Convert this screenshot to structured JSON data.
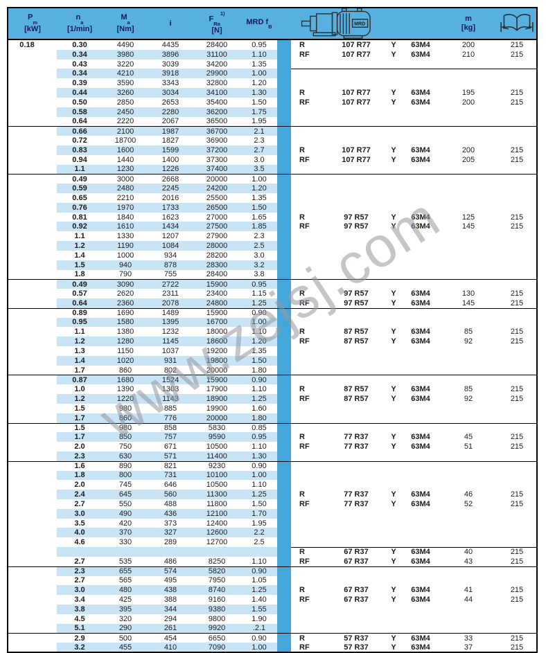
{
  "colors": {
    "header_blue": "#57b0e0",
    "stripe_blue": "#47a6d9",
    "row_shade": "#c9e5f5",
    "header_text_navy": "#10195f"
  },
  "watermark": "www.zejsj.com",
  "power": "0.18",
  "header": {
    "columns": [
      {
        "id": "pm",
        "main": "P",
        "sub": "m",
        "unit": "[kW]"
      },
      {
        "id": "na",
        "main": "n",
        "sub": "a",
        "unit": "[1/min]"
      },
      {
        "id": "ma",
        "main": "M",
        "sub": "a",
        "unit": "[Nm]"
      },
      {
        "id": "i",
        "main": "i",
        "unit": ""
      },
      {
        "id": "fra",
        "main": "F",
        "sub": "Ra",
        "sup": "1)",
        "unit": "[N]"
      },
      {
        "id": "mrd",
        "main": "MRD f",
        "sub": "B",
        "unit": ""
      }
    ],
    "motor_icon_label": "MRD",
    "m_main": "m",
    "m_unit": "[kg]"
  },
  "rows": [
    {
      "na": "0.30",
      "ma": "4490",
      "i": "4435",
      "fra": "28400",
      "mrd": "0.95",
      "r": [
        "R",
        "107 R77",
        "Y",
        "63M4",
        "200",
        "215"
      ]
    },
    {
      "na": "0.34",
      "ma": "3980",
      "i": "3896",
      "fra": "31100",
      "mrd": "1.10",
      "r": [
        "RF",
        "107 R77",
        "Y",
        "63M4",
        "210",
        "215"
      ]
    },
    {
      "na": "0.43",
      "ma": "3220",
      "i": "3039",
      "fra": "34200",
      "mrd": "1.35"
    },
    {
      "na": "0.34",
      "ma": "4210",
      "i": "3918",
      "fra": "29900",
      "mrd": "1.00",
      "rb": true
    },
    {
      "na": "0.39",
      "ma": "3590",
      "i": "3343",
      "fra": "32800",
      "mrd": "1.20"
    },
    {
      "na": "0.44",
      "ma": "3260",
      "i": "3034",
      "fra": "34100",
      "mrd": "1.30",
      "r": [
        "R",
        "107 R77",
        "Y",
        "63M4",
        "195",
        "215"
      ]
    },
    {
      "na": "0.50",
      "ma": "2850",
      "i": "2653",
      "fra": "35400",
      "mrd": "1.50",
      "r": [
        "RF",
        "107 R77",
        "Y",
        "63M4",
        "200",
        "215"
      ]
    },
    {
      "na": "0.58",
      "ma": "2450",
      "i": "2280",
      "fra": "36200",
      "mrd": "1.75"
    },
    {
      "na": "0.64",
      "ma": "2220",
      "i": "2067",
      "fra": "36500",
      "mrd": "1.95"
    },
    {
      "na": "0.66",
      "ma": "2100",
      "i": "1987",
      "fra": "36700",
      "mrd": "2.1",
      "sb": true
    },
    {
      "na": "0.72",
      "ma": "18700",
      "i": "1827",
      "fra": "36900",
      "mrd": "2.3"
    },
    {
      "na": "0.83",
      "ma": "1600",
      "i": "1599",
      "fra": "37200",
      "mrd": "2.7",
      "r": [
        "R",
        "107 R77",
        "Y",
        "63M4",
        "200",
        "215"
      ]
    },
    {
      "na": "0.94",
      "ma": "1440",
      "i": "1400",
      "fra": "37300",
      "mrd": "3.0",
      "r": [
        "RF",
        "107 R77",
        "Y",
        "63M4",
        "205",
        "215"
      ]
    },
    {
      "na": "1.1",
      "ma": "1230",
      "i": "1226",
      "fra": "37400",
      "mrd": "3.5"
    },
    {
      "na": "0.49",
      "ma": "3000",
      "i": "2668",
      "fra": "20000",
      "mrd": "1.00",
      "sb": true
    },
    {
      "na": "0.59",
      "ma": "2480",
      "i": "2245",
      "fra": "24200",
      "mrd": "1.20"
    },
    {
      "na": "0.65",
      "ma": "2210",
      "i": "2016",
      "fra": "25500",
      "mrd": "1.35"
    },
    {
      "na": "0.76",
      "ma": "1970",
      "i": "1733",
      "fra": "26500",
      "mrd": "1.50"
    },
    {
      "na": "0.81",
      "ma": "1840",
      "i": "1623",
      "fra": "27000",
      "mrd": "1.65",
      "r": [
        "R",
        "97 R57",
        "Y",
        "63M4",
        "125",
        "215"
      ]
    },
    {
      "na": "0.92",
      "ma": "1610",
      "i": "1434",
      "fra": "27500",
      "mrd": "1.85",
      "r": [
        "RF",
        "97 R57",
        "Y",
        "63M4",
        "145",
        "215"
      ]
    },
    {
      "na": "1.1",
      "ma": "1330",
      "i": "1207",
      "fra": "27900",
      "mrd": "2.3"
    },
    {
      "na": "1.2",
      "ma": "1190",
      "i": "1084",
      "fra": "28000",
      "mrd": "2.5"
    },
    {
      "na": "1.4",
      "ma": "1000",
      "i": "934",
      "fra": "28200",
      "mrd": "3.0"
    },
    {
      "na": "1.5",
      "ma": "940",
      "i": "878",
      "fra": "28300",
      "mrd": "3.2"
    },
    {
      "na": "1.8",
      "ma": "790",
      "i": "755",
      "fra": "28400",
      "mrd": "3.8"
    },
    {
      "na": "0.49",
      "ma": "3090",
      "i": "2722",
      "fra": "15900",
      "mrd": "0.95",
      "sb": true
    },
    {
      "na": "0.57",
      "ma": "2620",
      "i": "2311",
      "fra": "23400",
      "mrd": "1.15",
      "r": [
        "R",
        "97 R57",
        "Y",
        "63M4",
        "130",
        "215"
      ]
    },
    {
      "na": "0.64",
      "ma": "2360",
      "i": "2078",
      "fra": "24800",
      "mrd": "1.25",
      "r": [
        "RF",
        "97 R57",
        "Y",
        "63M4",
        "145",
        "215"
      ]
    },
    {
      "na": "0.89",
      "ma": "1690",
      "i": "1489",
      "fra": "15900",
      "mrd": "0.90",
      "sb": true
    },
    {
      "na": "0.95",
      "ma": "1580",
      "i": "1395",
      "fra": "16700",
      "mrd": "1.00"
    },
    {
      "na": "1.1",
      "ma": "1380",
      "i": "1232",
      "fra": "18000",
      "mrd": "1.10",
      "r": [
        "R",
        "87 R57",
        "Y",
        "63M4",
        "85",
        "215"
      ]
    },
    {
      "na": "1.2",
      "ma": "1280",
      "i": "1145",
      "fra": "18600",
      "mrd": "1.20",
      "r": [
        "RF",
        "87 R57",
        "Y",
        "63M4",
        "92",
        "215"
      ]
    },
    {
      "na": "1.3",
      "ma": "1150",
      "i": "1037",
      "fra": "19200",
      "mrd": "1.35"
    },
    {
      "na": "1.4",
      "ma": "1020",
      "i": "931",
      "fra": "19800",
      "mrd": "1.50"
    },
    {
      "na": "1.7",
      "ma": "860",
      "i": "802",
      "fra": "20000",
      "mrd": "1.80"
    },
    {
      "na": "0.87",
      "ma": "1680",
      "i": "1524",
      "fra": "15900",
      "mrd": "0.90",
      "sb": true
    },
    {
      "na": "1.0",
      "ma": "1390",
      "i": "1303",
      "fra": "17900",
      "mrd": "1.10",
      "r": [
        "R",
        "87 R57",
        "Y",
        "63M4",
        "85",
        "215"
      ]
    },
    {
      "na": "1.2",
      "ma": "1220",
      "i": "1143",
      "fra": "18900",
      "mrd": "1.25",
      "r": [
        "RF",
        "87 R57",
        "Y",
        "63M4",
        "92",
        "215"
      ]
    },
    {
      "na": "1.5",
      "ma": "980",
      "i": "885",
      "fra": "19900",
      "mrd": "1.60"
    },
    {
      "na": "1.7",
      "ma": "860",
      "i": "776",
      "fra": "20000",
      "mrd": "1.80"
    },
    {
      "na": "1.5",
      "ma": "980",
      "i": "858",
      "fra": "5830",
      "mrd": "0.85",
      "sb": true
    },
    {
      "na": "1.7",
      "ma": "850",
      "i": "757",
      "fra": "9590",
      "mrd": "0.95",
      "r": [
        "R",
        "77 R37",
        "Y",
        "63M4",
        "45",
        "215"
      ]
    },
    {
      "na": "2.0",
      "ma": "750",
      "i": "671",
      "fra": "10500",
      "mrd": "1.10",
      "r": [
        "RF",
        "77 R37",
        "Y",
        "63M4",
        "51",
        "215"
      ]
    },
    {
      "na": "2.3",
      "ma": "630",
      "i": "571",
      "fra": "11400",
      "mrd": "1.30"
    },
    {
      "na": "1.6",
      "ma": "890",
      "i": "821",
      "fra": "9230",
      "mrd": "0.90",
      "sb": true
    },
    {
      "na": "1.8",
      "ma": "800",
      "i": "731",
      "fra": "10100",
      "mrd": "1.00"
    },
    {
      "na": "2.0",
      "ma": "745",
      "i": "646",
      "fra": "10500",
      "mrd": "1.10"
    },
    {
      "na": "2.4",
      "ma": "645",
      "i": "560",
      "fra": "11300",
      "mrd": "1.25",
      "r": [
        "R",
        "77 R37",
        "Y",
        "63M4",
        "46",
        "215"
      ]
    },
    {
      "na": "2.7",
      "ma": "550",
      "i": "488",
      "fra": "11800",
      "mrd": "1.50",
      "r": [
        "RF",
        "77 R37",
        "Y",
        "63M4",
        "52",
        "215"
      ]
    },
    {
      "na": "3.0",
      "ma": "490",
      "i": "436",
      "fra": "12100",
      "mrd": "1.70"
    },
    {
      "na": "3.5",
      "ma": "420",
      "i": "373",
      "fra": "12400",
      "mrd": "1.95"
    },
    {
      "na": "4.0",
      "ma": "370",
      "i": "327",
      "fra": "12600",
      "mrd": "2.2"
    },
    {
      "na": "4.6",
      "ma": "330",
      "i": "289",
      "fra": "12700",
      "mrd": "2.5"
    },
    {
      "na": "",
      "ma": "",
      "i": "",
      "fra": "",
      "mrd": "",
      "rb": true,
      "r": [
        "R",
        "67 R37",
        "Y",
        "63M4",
        "40",
        "215"
      ]
    },
    {
      "na": "2.7",
      "ma": "535",
      "i": "486",
      "fra": "8250",
      "mrd": "1.10",
      "r": [
        "RF",
        "67 R37",
        "Y",
        "63M4",
        "43",
        "215"
      ]
    },
    {
      "na": "2.3",
      "ma": "655",
      "i": "574",
      "fra": "5820",
      "mrd": "0.90",
      "sb": true
    },
    {
      "na": "2.7",
      "ma": "565",
      "i": "495",
      "fra": "7950",
      "mrd": "1.05"
    },
    {
      "na": "3.0",
      "ma": "480",
      "i": "438",
      "fra": "8740",
      "mrd": "1.25",
      "r": [
        "R",
        "67 R37",
        "Y",
        "63M4",
        "41",
        "215"
      ]
    },
    {
      "na": "3.4",
      "ma": "425",
      "i": "388",
      "fra": "9160",
      "mrd": "1.40",
      "r": [
        "RF",
        "67 R37",
        "Y",
        "63M4",
        "44",
        "215"
      ]
    },
    {
      "na": "3.8",
      "ma": "395",
      "i": "344",
      "fra": "9380",
      "mrd": "1.55"
    },
    {
      "na": "4.5",
      "ma": "320",
      "i": "294",
      "fra": "9800",
      "mrd": "1.90"
    },
    {
      "na": "5.1",
      "ma": "290",
      "i": "261",
      "fra": "9920",
      "mrd": ".2.1"
    },
    {
      "na": "2.9",
      "ma": "500",
      "i": "454",
      "fra": "6650",
      "mrd": "0.90",
      "sb": true,
      "r": [
        "R",
        "57 R37",
        "Y",
        "63M4",
        "33",
        "215"
      ]
    },
    {
      "na": "3.2",
      "ma": "455",
      "i": "410",
      "fra": "7090",
      "mrd": "1.00",
      "r": [
        "RF",
        "57 R37",
        "Y",
        "63M4",
        "37",
        "215"
      ]
    }
  ]
}
